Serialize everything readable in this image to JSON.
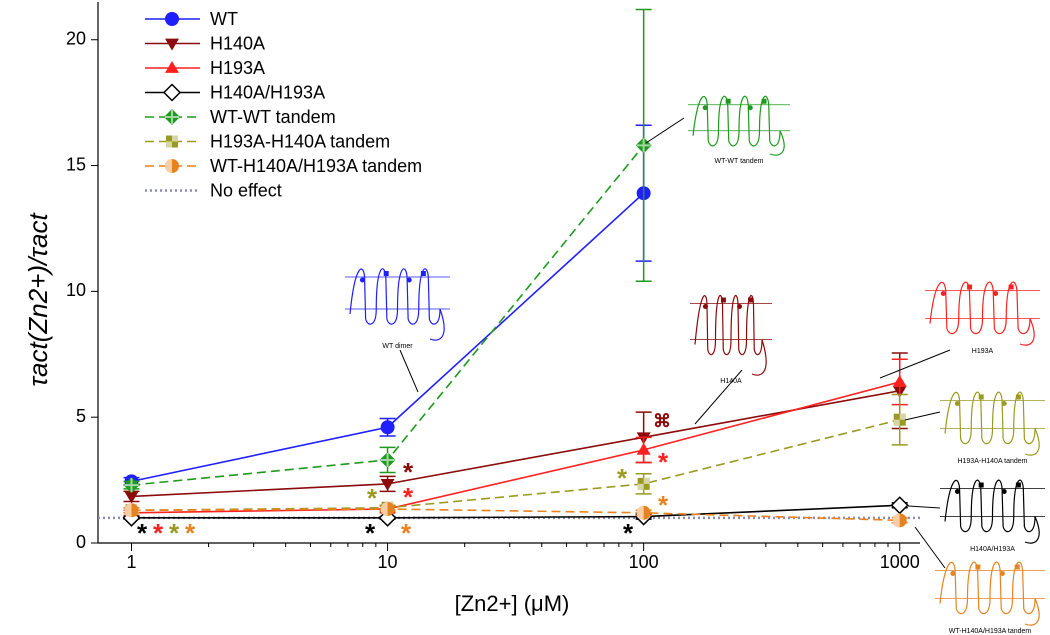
{
  "chart_data": {
    "type": "line",
    "x_label": "[Zn2+] (μM)",
    "y_label": "τact(Zn2+)/τact",
    "xscale": "log",
    "x": [
      1,
      10,
      100,
      1000
    ],
    "xlim": [
      0.74,
      1200
    ],
    "xticks": [
      1,
      10,
      100,
      1000
    ],
    "xminorticks": [
      2,
      3,
      4,
      5,
      6,
      7,
      8,
      9,
      20,
      30,
      40,
      50,
      60,
      70,
      80,
      90,
      200,
      300,
      400,
      500,
      600,
      700,
      800,
      900
    ],
    "ylim": [
      0,
      21.5
    ],
    "yticks": [
      0,
      5,
      10,
      15,
      20
    ],
    "legend": "upper left",
    "series": [
      {
        "name": "WT",
        "color": "#1f1fff",
        "dash": "solid",
        "marker": "circle",
        "values": [
          2.45,
          4.6,
          13.9,
          null
        ],
        "errors": [
          0.15,
          0.35,
          2.7,
          null
        ]
      },
      {
        "name": "H140A",
        "color": "#8b0a0a",
        "dash": "solid",
        "marker": "triangle-down",
        "values": [
          1.85,
          2.35,
          4.2,
          6.05
        ],
        "errors": [
          0.2,
          0.3,
          1.0,
          1.5
        ]
      },
      {
        "name": "H193A",
        "color": "#ff2020",
        "dash": "solid",
        "marker": "triangle-up",
        "values": [
          1.2,
          1.35,
          3.7,
          6.4
        ],
        "errors": [
          0.1,
          0.15,
          0.5,
          0.9
        ]
      },
      {
        "name": "H140A/H193A",
        "color": "#000000",
        "dash": "solid",
        "marker": "diamond-open",
        "values": [
          1.0,
          1.0,
          1.05,
          1.5
        ],
        "errors": [
          0.05,
          0.05,
          0.1,
          0.1
        ]
      },
      {
        "name": "WT-WT tandem",
        "color": "#1e9a1e",
        "dash": "dashed",
        "marker": "diamond-cross",
        "values": [
          2.3,
          3.3,
          15.8,
          null
        ],
        "errors": [
          0.15,
          0.5,
          5.4,
          null
        ]
      },
      {
        "name": "H193A-H140A tandem",
        "color": "#9a9a20",
        "dash": "dashed",
        "marker": "square",
        "values": [
          1.3,
          1.4,
          2.35,
          4.9
        ],
        "errors": [
          0.1,
          0.1,
          0.4,
          1.0
        ]
      },
      {
        "name": "WT-H140A/H193A tandem",
        "color": "#e8821e",
        "dash": "dashed",
        "marker": "half-circle",
        "values": [
          1.3,
          1.35,
          1.2,
          0.9
        ],
        "errors": [
          0.1,
          0.1,
          0.1,
          0.1
        ]
      }
    ],
    "reference_line": {
      "name": "No effect",
      "value": 1,
      "color": "#8a8ab8"
    },
    "annotations": [
      {
        "text": "*",
        "color": "#000000"
      },
      {
        "text": "*",
        "color": "#ff2020"
      },
      {
        "text": "*",
        "color": "#9a9a20"
      },
      {
        "text": "*",
        "color": "#e8821e"
      },
      {
        "text": "*",
        "color": "#9a9a20"
      },
      {
        "text": "*",
        "color": "#8b0a0a"
      },
      {
        "text": "*",
        "color": "#ff2020"
      },
      {
        "text": "*",
        "color": "#000000"
      },
      {
        "text": "*",
        "color": "#e8821e"
      },
      {
        "text": "*",
        "color": "#9a9a20"
      },
      {
        "text": "⌘",
        "color": "#8b0a0a"
      },
      {
        "text": "*",
        "color": "#ff2020"
      },
      {
        "text": "*",
        "color": "#e8821e"
      },
      {
        "text": "*",
        "color": "#000000"
      }
    ],
    "insets": [
      {
        "label": "WT dimer",
        "color": "#1f1fff"
      },
      {
        "label": "WT-WT tandem",
        "color": "#1e9a1e"
      },
      {
        "label": "H140A",
        "color": "#8b0a0a"
      },
      {
        "label": "H193A",
        "color": "#ff2020"
      },
      {
        "label": "H193A-H140A tandem",
        "color": "#9a9a20"
      },
      {
        "label": "H140A/H193A",
        "color": "#000000"
      },
      {
        "label": "WT-H140A/H193A tandem",
        "color": "#e8821e"
      }
    ]
  }
}
